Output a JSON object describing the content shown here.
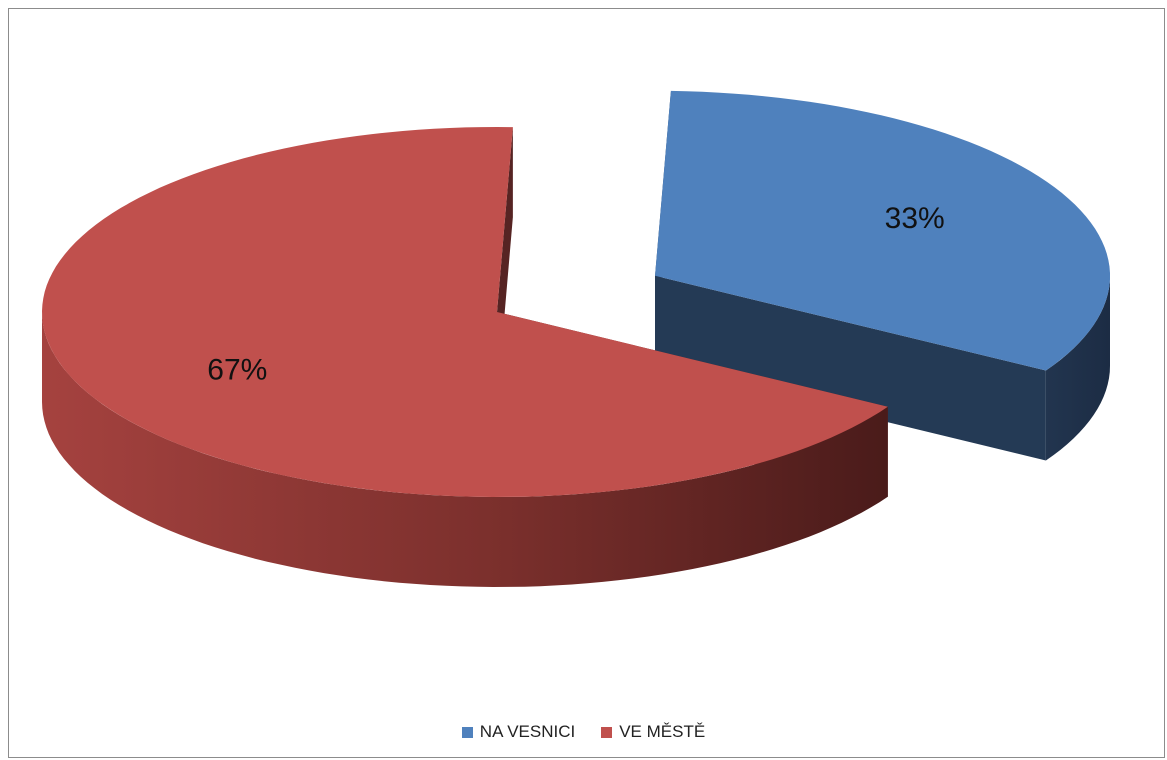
{
  "chart_data": {
    "type": "pie",
    "style": "3d-exploded",
    "categories": [
      "NA VESNICI",
      "VE MĚSTĚ"
    ],
    "values": [
      33,
      67
    ],
    "data_labels": [
      "33%",
      "67%"
    ],
    "colors": [
      "#4f81bd",
      "#c0504d"
    ],
    "legend_position": "bottom",
    "exploded_slice": "NA VESNICI"
  }
}
